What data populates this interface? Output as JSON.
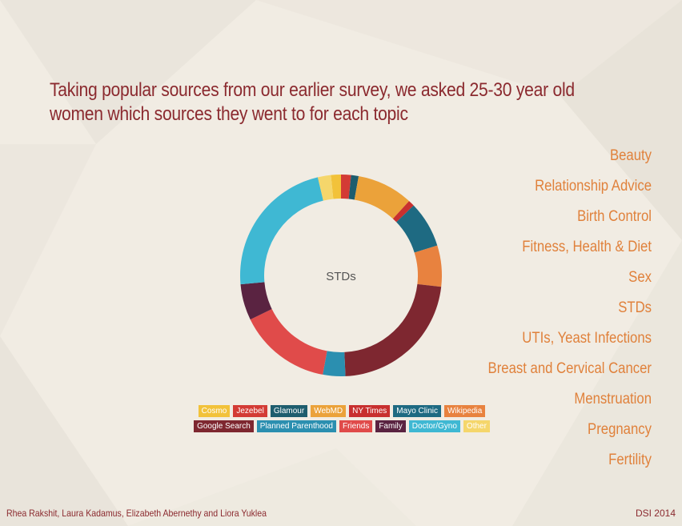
{
  "heading": {
    "line1": "Taking popular sources from our earlier survey, we asked 25-30 year old",
    "line2": "women which sources they went to for each topic"
  },
  "topics": [
    "Beauty",
    "Relationship Advice",
    "Birth Control",
    "Fitness, Health & Diet",
    "Sex",
    "STDs",
    "UTIs, Yeast Infections",
    "Breast and Cervical Cancer",
    "Menstruation",
    "Pregnancy",
    "Fertility"
  ],
  "colors": {
    "heading": "#8b2a2f",
    "topic": "#e0813b",
    "center_label": "#555555"
  },
  "chart_data": {
    "type": "pie",
    "variant": "donut",
    "center_label": "STDs",
    "slices": [
      {
        "name": "Cosmo",
        "value": 1.6,
        "color": "#f2c23a"
      },
      {
        "name": "Jezebel",
        "value": 1.6,
        "color": "#d33b35"
      },
      {
        "name": "Glamour",
        "value": 1.2,
        "color": "#1e5d6e"
      },
      {
        "name": "WebMD",
        "value": 9.0,
        "color": "#eba23a"
      },
      {
        "name": "NY Times",
        "value": 1.0,
        "color": "#c8302f"
      },
      {
        "name": "Mayo Clinic",
        "value": 7.4,
        "color": "#1e6a82"
      },
      {
        "name": "Wikipedia",
        "value": 6.6,
        "color": "#e8823f"
      },
      {
        "name": "Google Search",
        "value": 22.5,
        "color": "#7e2730"
      },
      {
        "name": "Planned Parenthood",
        "value": 3.6,
        "color": "#2b8fb0"
      },
      {
        "name": "Friends",
        "value": 14.9,
        "color": "#e04b4a"
      },
      {
        "name": "Family",
        "value": 5.8,
        "color": "#5a2341"
      },
      {
        "name": "Doctor/Gyno",
        "value": 22.7,
        "color": "#3fb8d3"
      },
      {
        "name": "Other",
        "value": 2.1,
        "color": "#f5d66b"
      }
    ],
    "legend": {
      "row1": [
        "Cosmo",
        "Jezebel",
        "Glamour",
        "WebMD",
        "NY Times",
        "Mayo Clinic",
        "Wikipedia"
      ],
      "row2": [
        "Google Search",
        "Planned Parenthood",
        "Friends",
        "Family",
        "Doctor/Gyno",
        "Other"
      ],
      "placement": "bottom"
    }
  },
  "footer": {
    "authors": "Rhea Rakshit, Laura Kadamus, Elizabeth Abernethy and Liora Yuklea",
    "event": "DSI 2014"
  }
}
